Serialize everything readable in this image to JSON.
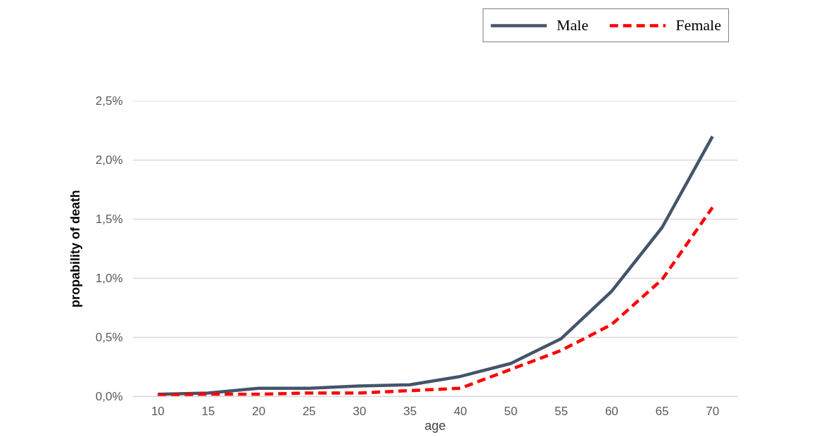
{
  "chart_data": {
    "type": "line",
    "xlabel": "age",
    "ylabel": "propability of death",
    "categories": [
      "10",
      "15",
      "20",
      "25",
      "30",
      "35",
      "40",
      "50",
      "55",
      "60",
      "65",
      "70"
    ],
    "series": [
      {
        "name": "Male",
        "color": "#44546a",
        "line_style": "solid",
        "values": [
          0.02,
          0.03,
          0.07,
          0.07,
          0.09,
          0.1,
          0.17,
          0.28,
          0.49,
          0.89,
          1.43,
          2.2
        ]
      },
      {
        "name": "Female",
        "color": "#ff0000",
        "line_style": "dashed",
        "values": [
          0.01,
          0.02,
          0.02,
          0.03,
          0.03,
          0.05,
          0.07,
          0.23,
          0.39,
          0.61,
          0.99,
          1.6
        ]
      }
    ],
    "ylim": [
      0,
      2.5
    ],
    "yticks": [
      {
        "value": 0,
        "label": "0,0%"
      },
      {
        "value": 0.5,
        "label": "0,5%"
      },
      {
        "value": 1,
        "label": "1,0%"
      },
      {
        "value": 1.5,
        "label": "1,5%"
      },
      {
        "value": 2,
        "label": "2,0%"
      },
      {
        "value": 2.5,
        "label": "2,5%"
      }
    ],
    "grid": "y",
    "legend": "top right"
  }
}
